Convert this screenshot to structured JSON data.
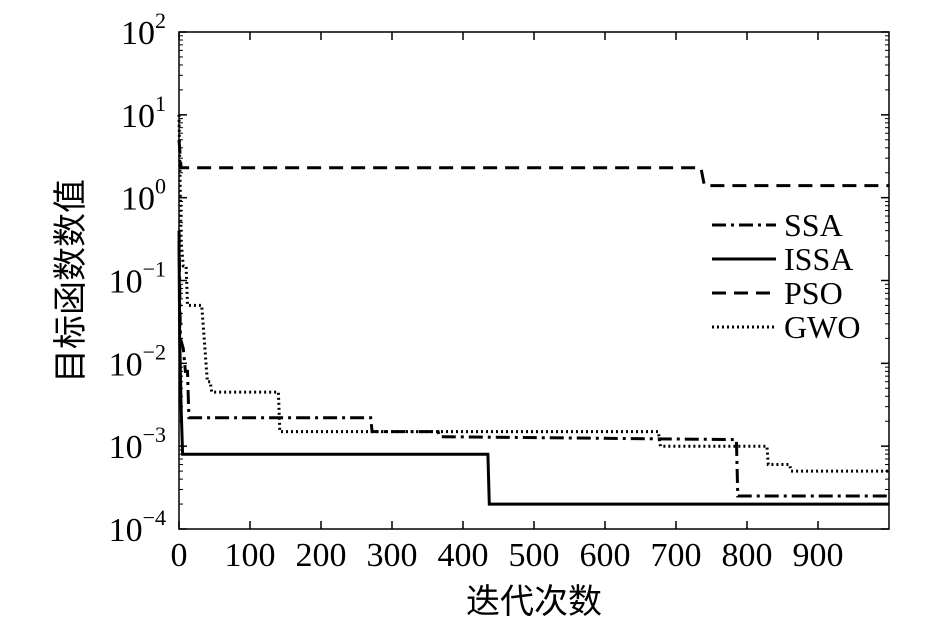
{
  "chart_data": {
    "type": "line",
    "xlabel": "迭代次数",
    "ylabel": "目标函数数值",
    "xlim": [
      0,
      1000
    ],
    "ylim": [
      0.0001,
      100
    ],
    "yscale": "log",
    "x_ticks": [
      {
        "value": 0,
        "label": "0"
      },
      {
        "value": 100,
        "label": "100"
      },
      {
        "value": 200,
        "label": "200"
      },
      {
        "value": 300,
        "label": "300"
      },
      {
        "value": 400,
        "label": "400"
      },
      {
        "value": 500,
        "label": "500"
      },
      {
        "value": 600,
        "label": "600"
      },
      {
        "value": 700,
        "label": "700"
      },
      {
        "value": 800,
        "label": "800"
      },
      {
        "value": 900,
        "label": "900"
      }
    ],
    "y_ticks": [
      {
        "value": 100,
        "base": "10",
        "exp": "2"
      },
      {
        "value": 10,
        "base": "10",
        "exp": "1"
      },
      {
        "value": 1,
        "base": "10",
        "exp": "0"
      },
      {
        "value": 0.1,
        "base": "10",
        "exp": "−1"
      },
      {
        "value": 0.01,
        "base": "10",
        "exp": "−2"
      },
      {
        "value": 0.001,
        "base": "10",
        "exp": "−3"
      },
      {
        "value": 0.0001,
        "base": "10",
        "exp": "−4"
      }
    ],
    "grid": false,
    "legend_position": "right",
    "series": [
      {
        "name": "SSA",
        "dash": "dashdot",
        "color": "#000000",
        "points": [
          [
            0,
            0.4
          ],
          [
            2,
            0.02
          ],
          [
            6,
            0.015
          ],
          [
            9,
            0.008
          ],
          [
            12,
            0.008
          ],
          [
            14,
            0.0022
          ],
          [
            270,
            0.0022
          ],
          [
            272,
            0.0015
          ],
          [
            365,
            0.0015
          ],
          [
            367,
            0.0013
          ],
          [
            785,
            0.0012
          ],
          [
            787,
            0.00025
          ],
          [
            1000,
            0.00025
          ]
        ]
      },
      {
        "name": "ISSA",
        "dash": "solid",
        "color": "#000000",
        "points": [
          [
            0,
            0.3
          ],
          [
            1,
            0.02
          ],
          [
            3,
            0.003
          ],
          [
            5,
            0.0008
          ],
          [
            435,
            0.0008
          ],
          [
            437,
            0.0002
          ],
          [
            1000,
            0.0002
          ]
        ]
      },
      {
        "name": "PSO",
        "dash": "dashed",
        "color": "#000000",
        "points": [
          [
            0,
            5
          ],
          [
            3,
            2.3
          ],
          [
            735,
            2.3
          ],
          [
            740,
            1.4
          ],
          [
            1000,
            1.4
          ]
        ]
      },
      {
        "name": "GWO",
        "dash": "dotted",
        "color": "#000000",
        "points": [
          [
            0,
            10
          ],
          [
            3,
            0.3
          ],
          [
            6,
            0.15
          ],
          [
            10,
            0.15
          ],
          [
            12,
            0.05
          ],
          [
            32,
            0.05
          ],
          [
            34,
            0.03
          ],
          [
            38,
            0.01
          ],
          [
            40,
            0.006
          ],
          [
            44,
            0.006
          ],
          [
            46,
            0.0045
          ],
          [
            140,
            0.0045
          ],
          [
            142,
            0.0015
          ],
          [
            675,
            0.0015
          ],
          [
            678,
            0.001
          ],
          [
            828,
            0.001
          ],
          [
            830,
            0.0006
          ],
          [
            860,
            0.0006
          ],
          [
            862,
            0.0005
          ],
          [
            1000,
            0.0005
          ]
        ]
      }
    ]
  }
}
